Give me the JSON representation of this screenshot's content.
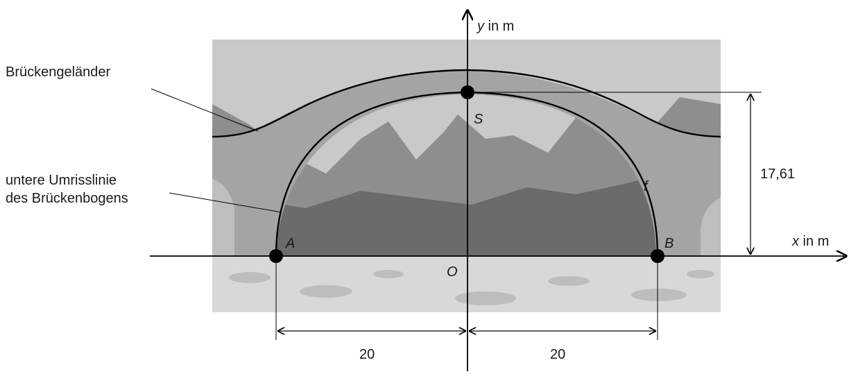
{
  "labels": {
    "railing": "Brückengeländer",
    "lower_outline_line1": "untere Umrisslinie",
    "lower_outline_line2": "des Brückenbogens",
    "y_axis_var": "y",
    "y_axis_unit": " in m",
    "x_axis_var": "x",
    "x_axis_unit": " in m",
    "point_a": "A",
    "point_b": "B",
    "point_s": "S",
    "origin": "O",
    "function_name": "f",
    "height_value": "17,61",
    "left_distance": "20",
    "right_distance": "20"
  },
  "colors": {
    "sky": "#c9c9c9",
    "mountain": "#8e8e8e",
    "forest": "#6b6b6b",
    "bridge_stone": "#a4a4a4",
    "river": "#d8d8d8",
    "ink": "#000000"
  }
}
